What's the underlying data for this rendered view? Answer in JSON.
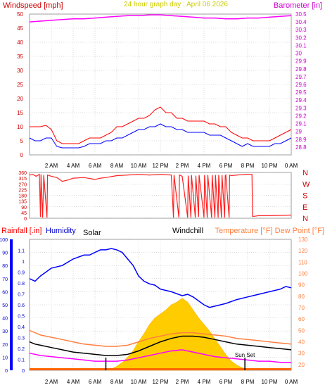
{
  "header": {
    "left_label": "Windspeed [mph]",
    "center_label": "24 hour graph day : April 06 2026",
    "right_label": "Barometer [in]"
  },
  "colors": {
    "windspeed": "#ff0000",
    "gust": "#ff0000",
    "avg_wind": "#0000ff",
    "barometer": "#ff00ff",
    "direction": "#ff2020",
    "rain_axis": "#ff0000",
    "humidity": "#0000ff",
    "solar": "#ffcc00",
    "windchill": "#000000",
    "temperature": "#ff8040",
    "dewpoint": "#ff00ff",
    "grid": "#bbbbbb"
  },
  "x_ticks": [
    "2 AM",
    "4 AM",
    "6 AM",
    "8 AM",
    "10 AM",
    "12 PM",
    "2 PM",
    "4 PM",
    "6 PM",
    "8 PM",
    "10 PM",
    "0 AM"
  ],
  "chart_data": [
    {
      "type": "line",
      "title": "24 hour graph day : April 06 2026",
      "x_domain_hours": [
        0,
        24
      ],
      "y_left": {
        "label": "Windspeed [mph]",
        "lim": [
          0,
          50
        ],
        "ticks": [
          "0",
          "5",
          "10",
          "15",
          "20",
          "25",
          "30",
          "35",
          "40",
          "45",
          "50"
        ]
      },
      "y_right": {
        "label": "Barometer [in]",
        "lim": [
          28.7,
          30.5
        ],
        "ticks": [
          "28.8",
          "28.9",
          "29",
          "29.1",
          "29.2",
          "29.3",
          "29.4",
          "29.5",
          "29.6",
          "29.7",
          "29.8",
          "29.9",
          "30",
          "30.1",
          "30.2",
          "30.3",
          "30.4",
          "30.5"
        ]
      },
      "series": [
        {
          "axis": "left",
          "x": [
            0,
            0.5,
            1,
            1.5,
            2,
            2.5,
            3,
            3.5,
            4,
            4.5,
            5,
            5.5,
            6,
            6.5,
            7,
            7.5,
            8,
            8.5,
            9,
            9.5,
            10,
            10.5,
            11,
            11.5,
            12,
            12.5,
            13,
            13.5,
            14,
            14.5,
            15,
            15.5,
            16,
            16.5,
            17,
            17.5,
            18,
            18.5,
            19,
            19.5,
            20,
            20.5,
            21,
            21.5,
            22,
            22.5,
            23,
            23.5,
            24
          ],
          "y": [
            10,
            10,
            10,
            10.5,
            9,
            5,
            4,
            4,
            4,
            4,
            5,
            6,
            6,
            6,
            7,
            8,
            10,
            10,
            11,
            12,
            13,
            13,
            14,
            16,
            17,
            15,
            15,
            13,
            13,
            12,
            12,
            12,
            12,
            11,
            11,
            10,
            10,
            8,
            7,
            6,
            6,
            5,
            5,
            5,
            5,
            6,
            7,
            8,
            9
          ]
        },
        {
          "axis": "left",
          "x": [
            0,
            0.5,
            1,
            1.5,
            2,
            2.5,
            3,
            3.5,
            4,
            4.5,
            5,
            5.5,
            6,
            6.5,
            7,
            7.5,
            8,
            8.5,
            9,
            9.5,
            10,
            10.5,
            11,
            11.5,
            12,
            12.5,
            13,
            13.5,
            14,
            14.5,
            15,
            15.5,
            16,
            16.5,
            17,
            17.5,
            18,
            18.5,
            19,
            19.5,
            20,
            20.5,
            21,
            21.5,
            22,
            22.5,
            23,
            23.5,
            24
          ],
          "y": [
            6,
            5,
            5,
            6,
            6,
            3,
            2.5,
            2.5,
            2.5,
            2.5,
            3,
            4,
            4,
            4,
            5,
            5,
            6,
            6,
            7,
            8,
            9,
            9,
            10,
            10,
            11,
            10,
            10,
            9,
            9,
            8,
            8,
            8,
            8,
            7,
            7,
            7,
            6,
            5,
            4,
            3,
            4,
            3,
            3,
            3,
            3,
            4,
            4,
            5,
            6
          ]
        },
        {
          "axis": "right",
          "x": [
            0,
            1,
            2,
            3,
            4,
            5,
            6,
            7,
            8,
            9,
            10,
            11,
            12,
            13,
            14,
            15,
            16,
            17,
            18,
            19,
            20,
            21,
            22,
            23,
            24
          ],
          "y": [
            30.4,
            30.41,
            30.42,
            30.43,
            30.44,
            30.44,
            30.45,
            30.46,
            30.47,
            30.48,
            30.48,
            30.49,
            30.49,
            30.48,
            30.47,
            30.46,
            30.45,
            30.45,
            30.44,
            30.44,
            30.45,
            30.45,
            30.46,
            30.47,
            30.48
          ]
        }
      ]
    },
    {
      "type": "line",
      "x_domain_hours": [
        0,
        24
      ],
      "y_left": {
        "lim": [
          0,
          360
        ],
        "ticks": [
          "0",
          "45",
          "90",
          "135",
          "180",
          "225",
          "270",
          "315",
          "360"
        ]
      },
      "y_right": {
        "ticks": [
          "N",
          "W",
          "S",
          "E",
          "N"
        ]
      },
      "series": [
        {
          "axis": "left",
          "x": [
            0,
            0.3,
            0.6,
            0.9,
            1,
            1.05,
            1.2,
            1.3,
            1.6,
            1.65,
            2,
            2.5,
            3,
            3.5,
            4,
            5,
            6,
            6.5,
            7,
            8,
            9,
            10,
            11,
            12,
            13,
            13.2,
            13.25,
            13.7,
            13.75,
            14,
            14.5,
            14.55,
            14.8,
            14.85,
            15.2,
            15.25,
            15.5,
            15.55,
            16,
            16.05,
            16.3,
            16.35,
            16.7,
            16.75,
            17,
            17.05,
            17.3,
            17.35,
            17.6,
            17.65,
            17.9,
            17.95,
            18,
            18.3,
            18.35,
            18.5,
            19,
            20,
            20.4,
            20.45,
            20.6,
            21,
            22,
            23,
            24
          ],
          "y": [
            340,
            345,
            330,
            345,
            10,
            345,
            5,
            340,
            5,
            340,
            330,
            320,
            290,
            300,
            315,
            320,
            305,
            315,
            320,
            335,
            340,
            345,
            340,
            345,
            340,
            5,
            340,
            5,
            340,
            330,
            5,
            335,
            5,
            340,
            5,
            335,
            10,
            340,
            5,
            340,
            5,
            340,
            5,
            340,
            5,
            340,
            5,
            340,
            5,
            340,
            5,
            335,
            340,
            5,
            340,
            335,
            340,
            345,
            345,
            15,
            15,
            20,
            20,
            22,
            25
          ]
        }
      ]
    },
    {
      "type": "area",
      "x_domain_hours": [
        0,
        24
      ],
      "y_left_rain": {
        "label": "Rainfall [.in]",
        "lim": [
          0,
          1.2
        ],
        "ticks": [
          "0",
          "0.1",
          "0.2",
          "0.3",
          "0.4",
          "0.5",
          "0.6",
          "0.7",
          "0.8",
          "0.9",
          "1",
          "1.1"
        ]
      },
      "y_left_humidity": {
        "label": "Humidity",
        "lim": [
          0,
          100
        ],
        "ticks": [
          "0",
          "10",
          "20",
          "30",
          "40",
          "50",
          "60",
          "70",
          "80",
          "90",
          "100"
        ]
      },
      "y_right": {
        "label": "Temperature [°F] Dew Point [°F]",
        "lim": [
          15,
          130
        ],
        "ticks": [
          "20",
          "30",
          "40",
          "50",
          "60",
          "70",
          "80",
          "90",
          "100",
          "110",
          "120",
          "130"
        ]
      },
      "labels": {
        "solar": "Solar",
        "windchill": "Windchill"
      },
      "annotations": [
        {
          "text": "Sun Set",
          "hour": 19.75
        },
        {
          "text": "",
          "hour": 7
        }
      ],
      "series": [
        {
          "axis": "humidity",
          "x": [
            0,
            0.5,
            1,
            2,
            3,
            4,
            5,
            5.5,
            6,
            6.5,
            7,
            7.5,
            8,
            8.5,
            9,
            9.5,
            10,
            10.5,
            11,
            11.5,
            12,
            13,
            14,
            14.5,
            15,
            16,
            16.5,
            17,
            18,
            19,
            20,
            21,
            22,
            23,
            23.5,
            24
          ],
          "y": [
            70,
            68,
            72,
            78,
            80,
            85,
            88,
            88,
            90,
            92,
            92,
            93,
            92,
            90,
            85,
            80,
            72,
            68,
            66,
            65,
            62,
            60,
            57,
            58,
            56,
            50,
            48,
            49,
            51,
            54,
            56,
            58,
            60,
            62,
            64,
            63
          ]
        },
        {
          "axis": "right",
          "x": [
            0,
            0.5,
            1,
            2,
            3,
            4,
            5,
            6,
            7,
            8,
            9,
            10,
            11,
            12,
            13,
            14,
            15,
            16,
            17,
            18,
            19,
            20,
            21,
            22,
            23,
            24
          ],
          "y": [
            50,
            48,
            46,
            44,
            42,
            40,
            38,
            37,
            36,
            36,
            37,
            40,
            43,
            45,
            47,
            48,
            48,
            47,
            46,
            45,
            43,
            42,
            41,
            40,
            39,
            38
          ]
        },
        {
          "axis": "right",
          "x": [
            0,
            0.5,
            1,
            2,
            3,
            4,
            5,
            6,
            7,
            8,
            9,
            10,
            11,
            12,
            13,
            14,
            15,
            16,
            17,
            18,
            19,
            20,
            21,
            22,
            23,
            24
          ],
          "y": [
            40,
            38,
            37,
            35,
            33,
            31,
            30,
            29,
            28,
            28,
            29,
            32,
            36,
            40,
            43,
            45,
            45,
            44,
            42,
            40,
            38,
            37,
            36,
            35,
            34,
            33
          ]
        },
        {
          "axis": "right",
          "x": [
            0,
            1,
            2,
            3,
            4,
            5,
            6,
            7,
            8,
            9,
            10,
            11,
            12,
            13,
            14,
            15,
            16,
            17,
            18,
            19,
            20,
            21,
            22,
            23,
            24
          ],
          "y": [
            30,
            28,
            27,
            26,
            25,
            24,
            23,
            23,
            23,
            24,
            26,
            28,
            30,
            32,
            33,
            31,
            29,
            27,
            26,
            25,
            24,
            23,
            23,
            22,
            22
          ]
        },
        {
          "axis": "humidity",
          "x": [
            7,
            7.5,
            8,
            8.5,
            9,
            9.5,
            10,
            10.5,
            11,
            11.5,
            12,
            12.5,
            13,
            13.5,
            14,
            14.5,
            15,
            15.5,
            16,
            16.5,
            17,
            17.5,
            18,
            18.5,
            19,
            19.5,
            20
          ],
          "y": [
            0,
            1,
            3,
            6,
            10,
            15,
            22,
            28,
            35,
            40,
            43,
            46,
            50,
            52,
            55,
            52,
            46,
            40,
            35,
            30,
            24,
            18,
            12,
            7,
            4,
            2,
            0
          ]
        },
        {
          "axis": "rain",
          "x": [
            0,
            24
          ],
          "y": [
            0,
            0
          ]
        }
      ]
    }
  ]
}
